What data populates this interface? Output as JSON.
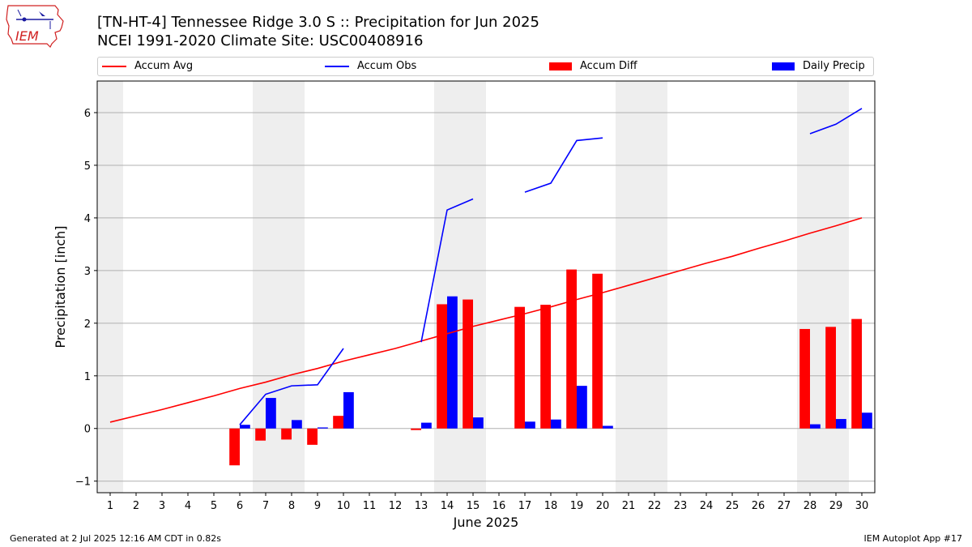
{
  "header": {
    "title": "[TN-HT-4] Tennessee Ridge 3.0 S :: Precipitation for Jun 2025",
    "subtitle": "NCEI 1991-2020 Climate Site: USC00408916"
  },
  "logo": {
    "text": "IEM"
  },
  "footer": {
    "generated": "Generated at 2 Jul 2025 12:16 AM CDT in 0.82s",
    "app": "IEM Autoplot App #17"
  },
  "colors": {
    "accum_avg": "#ff0000",
    "accum_obs": "#0000ff",
    "accum_diff": "#ff0000",
    "daily_precip": "#0000ff",
    "weekend_shade": "#eeeeee",
    "grid": "#b0b0b0"
  },
  "chart_data": {
    "type": "bar",
    "title": "[TN-HT-4] Tennessee Ridge 3.0 S :: Precipitation for Jun 2025",
    "subtitle": "NCEI 1991-2020 Climate Site: USC00408916",
    "xlabel": "June 2025",
    "ylabel": "Precipitation [inch]",
    "xlim": [
      0.5,
      30.5
    ],
    "ylim": [
      -1.22,
      6.6
    ],
    "yticks": [
      -1,
      0,
      1,
      2,
      3,
      4,
      5,
      6
    ],
    "days": [
      1,
      2,
      3,
      4,
      5,
      6,
      7,
      8,
      9,
      10,
      11,
      12,
      13,
      14,
      15,
      16,
      17,
      18,
      19,
      20,
      21,
      22,
      23,
      24,
      25,
      26,
      27,
      28,
      29,
      30
    ],
    "grid": "horizontal",
    "legend_position": "top",
    "shaded_days": [
      1,
      7,
      8,
      14,
      15,
      21,
      22,
      28,
      29
    ],
    "series": [
      {
        "name": "Accum Avg",
        "kind": "line",
        "points": [
          [
            1,
            0.12
          ],
          [
            2,
            0.24
          ],
          [
            3,
            0.36
          ],
          [
            4,
            0.49
          ],
          [
            5,
            0.62
          ],
          [
            6,
            0.76
          ],
          [
            7,
            0.88
          ],
          [
            8,
            1.02
          ],
          [
            9,
            1.14
          ],
          [
            10,
            1.28
          ],
          [
            11,
            1.4
          ],
          [
            12,
            1.52
          ],
          [
            13,
            1.66
          ],
          [
            14,
            1.8
          ],
          [
            15,
            1.94
          ],
          [
            16,
            2.06
          ],
          [
            17,
            2.18
          ],
          [
            18,
            2.31
          ],
          [
            19,
            2.45
          ],
          [
            20,
            2.58
          ],
          [
            21,
            2.72
          ],
          [
            22,
            2.86
          ],
          [
            23,
            3.0
          ],
          [
            24,
            3.14
          ],
          [
            25,
            3.27
          ],
          [
            26,
            3.42
          ],
          [
            27,
            3.56
          ],
          [
            28,
            3.71
          ],
          [
            29,
            3.85
          ],
          [
            30,
            4.0
          ]
        ]
      },
      {
        "name": "Accum Obs",
        "kind": "line",
        "segments": [
          [
            [
              6,
              0.07
            ],
            [
              7,
              0.65
            ],
            [
              8,
              0.81
            ],
            [
              9,
              0.83
            ],
            [
              10,
              1.52
            ]
          ],
          [
            [
              13,
              1.64
            ],
            [
              14,
              4.15
            ],
            [
              15,
              4.36
            ]
          ],
          [
            [
              17,
              4.49
            ],
            [
              18,
              4.66
            ],
            [
              19,
              5.47
            ],
            [
              20,
              5.52
            ]
          ],
          [
            [
              28,
              5.6
            ],
            [
              29,
              5.78
            ],
            [
              30,
              6.08
            ]
          ]
        ]
      },
      {
        "name": "Accum Diff",
        "kind": "bar",
        "side": "left",
        "values": [
          [
            6,
            -0.7
          ],
          [
            7,
            -0.23
          ],
          [
            8,
            -0.21
          ],
          [
            9,
            -0.31
          ],
          [
            10,
            0.24
          ],
          [
            13,
            -0.03
          ],
          [
            14,
            2.36
          ],
          [
            15,
            2.45
          ],
          [
            17,
            2.31
          ],
          [
            18,
            2.35
          ],
          [
            19,
            3.02
          ],
          [
            20,
            2.94
          ],
          [
            28,
            1.89
          ],
          [
            29,
            1.93
          ],
          [
            30,
            2.08
          ]
        ]
      },
      {
        "name": "Daily Precip",
        "kind": "bar",
        "side": "right",
        "values": [
          [
            6,
            0.07
          ],
          [
            7,
            0.58
          ],
          [
            8,
            0.16
          ],
          [
            9,
            0.02
          ],
          [
            10,
            0.69
          ],
          [
            13,
            0.11
          ],
          [
            14,
            2.51
          ],
          [
            15,
            0.21
          ],
          [
            17,
            0.13
          ],
          [
            18,
            0.17
          ],
          [
            19,
            0.81
          ],
          [
            20,
            0.05
          ],
          [
            28,
            0.08
          ],
          [
            29,
            0.18
          ],
          [
            30,
            0.3
          ]
        ]
      }
    ]
  }
}
